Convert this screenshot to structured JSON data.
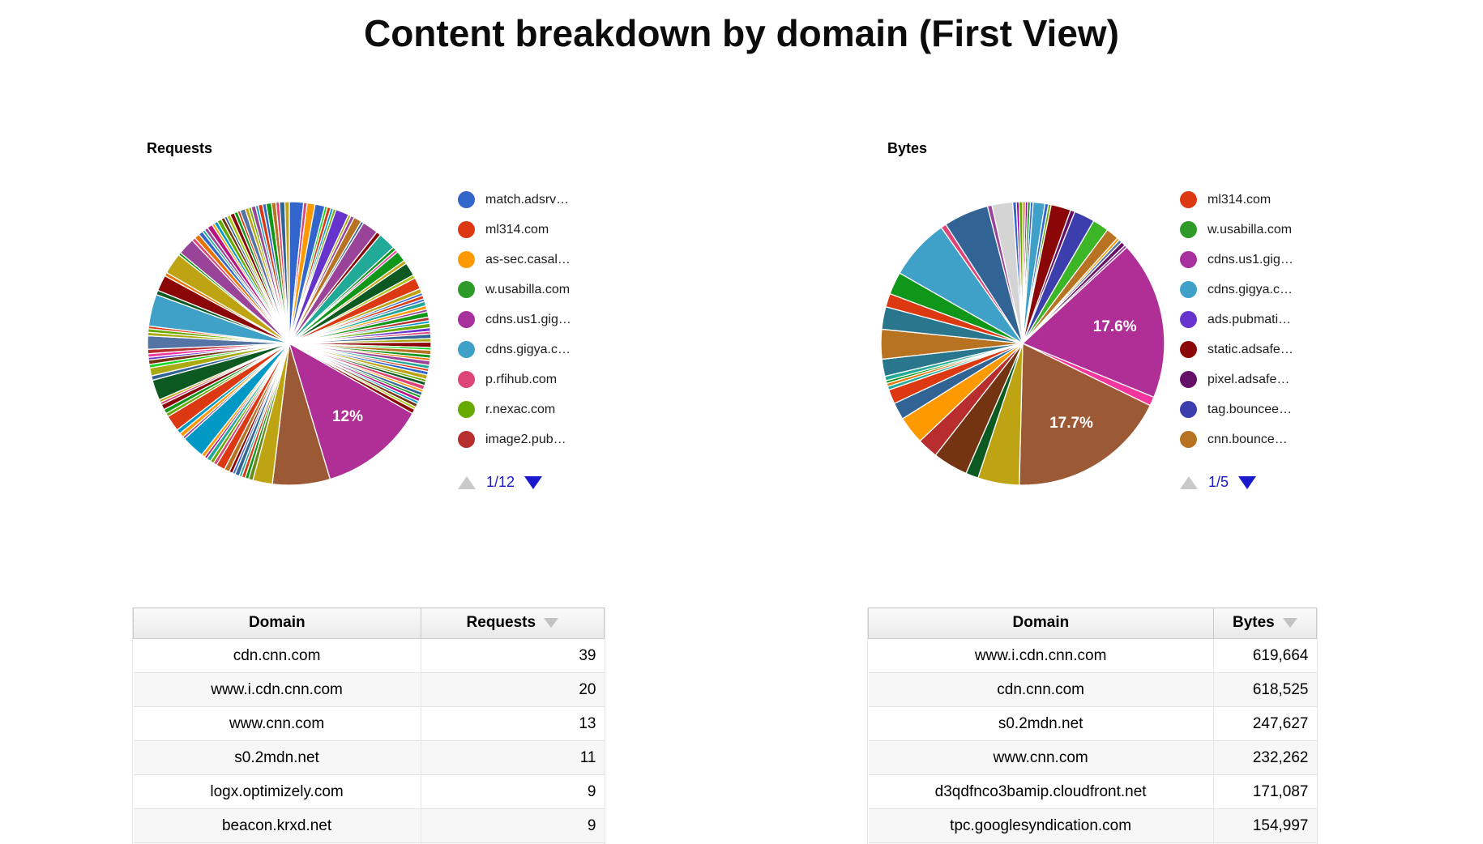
{
  "title": "Content breakdown by domain (First View)",
  "requests_chart": {
    "label": "Requests",
    "pager": "1/12",
    "legend": [
      {
        "label": "match.adsrv…",
        "color": "#3366cc"
      },
      {
        "label": "ml314.com",
        "color": "#dc3912"
      },
      {
        "label": "as-sec.casal…",
        "color": "#ff9900"
      },
      {
        "label": "w.usabilla.com",
        "color": "#2e9a27"
      },
      {
        "label": "cdns.us1.gig…",
        "color": "#a8309c"
      },
      {
        "label": "cdns.gigya.c…",
        "color": "#3fa0c8"
      },
      {
        "label": "p.rfihub.com",
        "color": "#dd4477"
      },
      {
        "label": "r.nexac.com",
        "color": "#66aa00"
      },
      {
        "label": "image2.pub…",
        "color": "#b82e2e"
      }
    ],
    "slices": [
      [
        1.6,
        "#3366cc"
      ],
      [
        0.4,
        "#dd4477"
      ],
      [
        0.9,
        "#ff9900"
      ],
      [
        1.1,
        "#3366cc"
      ],
      [
        0.3,
        "#16d620"
      ],
      [
        0.4,
        "#dc3912"
      ],
      [
        0.3,
        "#0099c6"
      ],
      [
        0.3,
        "#66aa00"
      ],
      [
        1.5,
        "#6633cc"
      ],
      [
        0.3,
        "#aaaa11"
      ],
      [
        0.4,
        "#994499"
      ],
      [
        0.9,
        "#b77322"
      ],
      [
        0.3,
        "#316395"
      ],
      [
        1.8,
        "#994499"
      ],
      [
        0.5,
        "#8b0707"
      ],
      [
        2.0,
        "#22aa99"
      ],
      [
        0.4,
        "#109618"
      ],
      [
        0.3,
        "#f4359e"
      ],
      [
        1.2,
        "#109618"
      ],
      [
        0.4,
        "#bea413"
      ],
      [
        1.5,
        "#0c5922"
      ],
      [
        0.4,
        "#a9c413"
      ],
      [
        1.3,
        "#dc3912"
      ],
      [
        0.5,
        "#bea413"
      ],
      [
        0.3,
        "#3366cc"
      ],
      [
        0.4,
        "#dc3912"
      ],
      [
        0.3,
        "#3366cc"
      ],
      [
        0.5,
        "#22aa99"
      ],
      [
        0.4,
        "#ff9900"
      ],
      [
        0.3,
        "#994499"
      ],
      [
        0.6,
        "#109618"
      ],
      [
        0.4,
        "#b82e2e"
      ],
      [
        0.3,
        "#0099c6"
      ],
      [
        0.5,
        "#66aa00"
      ],
      [
        0.4,
        "#6633cc"
      ],
      [
        0.3,
        "#dd4477"
      ],
      [
        0.5,
        "#316395"
      ],
      [
        0.4,
        "#aaaa11"
      ],
      [
        0.6,
        "#8b0707"
      ],
      [
        0.3,
        "#16d620"
      ],
      [
        0.5,
        "#b77322"
      ],
      [
        0.4,
        "#109618"
      ],
      [
        0.3,
        "#e67300"
      ],
      [
        0.5,
        "#994499"
      ],
      [
        0.4,
        "#22aa99"
      ],
      [
        0.3,
        "#dc3912"
      ],
      [
        0.4,
        "#3366cc"
      ],
      [
        0.5,
        "#bea413"
      ],
      [
        0.3,
        "#66aa00"
      ],
      [
        0.4,
        "#0c5922"
      ],
      [
        0.5,
        "#dd4477"
      ],
      [
        0.3,
        "#ff9900"
      ],
      [
        0.4,
        "#316395"
      ],
      [
        0.3,
        "#109618"
      ],
      [
        0.4,
        "#b91383"
      ],
      [
        0.3,
        "#0099c6"
      ],
      [
        0.4,
        "#743411"
      ],
      [
        0.3,
        "#a9c413"
      ],
      [
        0.5,
        "#8b0707"
      ],
      [
        12,
        "#b02f96",
        "12%"
      ],
      [
        6.5,
        "#9c5935"
      ],
      [
        2.2,
        "#bea413"
      ],
      [
        0.5,
        "#668d1c"
      ],
      [
        0.4,
        "#109618"
      ],
      [
        0.4,
        "#dc3912"
      ],
      [
        0.3,
        "#22aa99"
      ],
      [
        0.5,
        "#316395"
      ],
      [
        0.3,
        "#3366cc"
      ],
      [
        0.4,
        "#8b0707"
      ],
      [
        0.6,
        "#b77322"
      ],
      [
        1.0,
        "#dc3912"
      ],
      [
        0.4,
        "#dd4477"
      ],
      [
        0.4,
        "#66aa00"
      ],
      [
        0.5,
        "#22aa99"
      ],
      [
        0.3,
        "#b91383"
      ],
      [
        0.4,
        "#ff9900"
      ],
      [
        2.6,
        "#0099c6"
      ],
      [
        0.3,
        "#994499"
      ],
      [
        0.5,
        "#ff9900"
      ],
      [
        0.5,
        "#0099c6"
      ],
      [
        1.8,
        "#dc3912"
      ],
      [
        0.4,
        "#66aa00"
      ],
      [
        0.5,
        "#109618"
      ],
      [
        0.6,
        "#8b0707"
      ],
      [
        0.3,
        "#dd4477"
      ],
      [
        0.3,
        "#bea413"
      ],
      [
        2.3,
        "#0c5922"
      ],
      [
        0.5,
        "#316395"
      ],
      [
        0.9,
        "#aaaa11"
      ],
      [
        0.4,
        "#16d620"
      ],
      [
        0.5,
        "#743411"
      ],
      [
        0.3,
        "#6633cc"
      ],
      [
        0.4,
        "#f4359e"
      ],
      [
        0.5,
        "#b82e2e"
      ],
      [
        1.5,
        "#5574a6"
      ],
      [
        0.4,
        "#aaaa11"
      ],
      [
        0.4,
        "#66aa00"
      ],
      [
        0.3,
        "#dc3912"
      ],
      [
        3.6,
        "#3fa0c8"
      ],
      [
        0.5,
        "#0c5922"
      ],
      [
        1.8,
        "#8b0707"
      ],
      [
        0.4,
        "#e67300"
      ],
      [
        2.4,
        "#bea413"
      ],
      [
        0.3,
        "#109618"
      ],
      [
        1.9,
        "#994499"
      ],
      [
        0.4,
        "#dd4477"
      ],
      [
        0.6,
        "#e67300"
      ],
      [
        0.5,
        "#3366cc"
      ],
      [
        0.3,
        "#22aa99"
      ],
      [
        0.4,
        "#994499"
      ],
      [
        0.6,
        "#b91383"
      ],
      [
        0.3,
        "#ff9900"
      ],
      [
        0.4,
        "#0099c6"
      ],
      [
        0.5,
        "#66aa00"
      ],
      [
        0.4,
        "#743411"
      ],
      [
        0.3,
        "#316395"
      ],
      [
        0.4,
        "#a9c413"
      ],
      [
        0.5,
        "#8b0707"
      ],
      [
        0.4,
        "#109618"
      ],
      [
        0.3,
        "#dc3912"
      ],
      [
        0.6,
        "#5574a6"
      ],
      [
        0.4,
        "#bea413"
      ],
      [
        0.3,
        "#66aa00"
      ],
      [
        0.5,
        "#994499"
      ],
      [
        0.3,
        "#0099c6"
      ],
      [
        0.5,
        "#dc3912"
      ],
      [
        0.4,
        "#3366cc"
      ],
      [
        0.6,
        "#109618"
      ],
      [
        0.5,
        "#b77322"
      ],
      [
        0.4,
        "#dd4477"
      ],
      [
        0.6,
        "#316395"
      ],
      [
        0.5,
        "#bea413"
      ]
    ]
  },
  "bytes_chart": {
    "label": "Bytes",
    "pager": "1/5",
    "legend": [
      {
        "label": "ml314.com",
        "color": "#dc3912"
      },
      {
        "label": "w.usabilla.com",
        "color": "#2e9a27"
      },
      {
        "label": "cdns.us1.gig…",
        "color": "#a8309c"
      },
      {
        "label": "cdns.gigya.c…",
        "color": "#3fa0c8"
      },
      {
        "label": "ads.pubmati…",
        "color": "#6633cc"
      },
      {
        "label": "static.adsafe…",
        "color": "#8b0707"
      },
      {
        "label": "pixel.adsafe…",
        "color": "#651067"
      },
      {
        "label": "tag.bouncee…",
        "color": "#3b3eac"
      },
      {
        "label": "cnn.bounce…",
        "color": "#b77322"
      }
    ],
    "slices": [
      [
        0.3,
        "#e67300"
      ],
      [
        0.25,
        "#990099"
      ],
      [
        0.3,
        "#109618"
      ],
      [
        0.3,
        "#3366cc"
      ],
      [
        1.3,
        "#3fa0c8"
      ],
      [
        0.4,
        "#3366cc"
      ],
      [
        0.3,
        "#66aa00"
      ],
      [
        2.2,
        "#8b0707"
      ],
      [
        0.5,
        "#651067"
      ],
      [
        2.3,
        "#3b3eac"
      ],
      [
        1.8,
        "#3cb527"
      ],
      [
        1.4,
        "#b77322"
      ],
      [
        0.3,
        "#ff9900"
      ],
      [
        0.35,
        "#5574a6"
      ],
      [
        0.5,
        "#651067"
      ],
      [
        0.3,
        "#994499"
      ],
      [
        17.6,
        "#b02f96",
        "17.6%"
      ],
      [
        1.0,
        "#f4359e"
      ],
      [
        17.7,
        "#9c5935",
        "17.7%"
      ],
      [
        4.6,
        "#bea413"
      ],
      [
        1.4,
        "#0c5922"
      ],
      [
        3.9,
        "#743411"
      ],
      [
        2.3,
        "#b82e2e"
      ],
      [
        3.1,
        "#ff9900"
      ],
      [
        1.9,
        "#316395"
      ],
      [
        1.6,
        "#dc3912"
      ],
      [
        0.4,
        "#22aa99"
      ],
      [
        0.35,
        "#e67300"
      ],
      [
        0.3,
        "#109618"
      ],
      [
        0.5,
        "#22aa99"
      ],
      [
        1.9,
        "#2a778d"
      ],
      [
        3.3,
        "#b77322"
      ],
      [
        2.5,
        "#2a778d"
      ],
      [
        1.5,
        "#dc3912"
      ],
      [
        2.5,
        "#109618"
      ],
      [
        6.8,
        "#3fa0c8"
      ],
      [
        0.6,
        "#dd4477"
      ],
      [
        5.0,
        "#316395"
      ],
      [
        0.5,
        "#994499"
      ],
      [
        2.3,
        "#d4d4d4"
      ],
      [
        0.4,
        "#3366cc"
      ],
      [
        0.3,
        "#990099"
      ],
      [
        0.4,
        "#66aa00"
      ]
    ]
  },
  "requests_table": {
    "headers": [
      "Domain",
      "Requests"
    ],
    "sorted_col": 1,
    "rows": [
      [
        "cdn.cnn.com",
        "39"
      ],
      [
        "www.i.cdn.cnn.com",
        "20"
      ],
      [
        "www.cnn.com",
        "13"
      ],
      [
        "s0.2mdn.net",
        "11"
      ],
      [
        "logx.optimizely.com",
        "9"
      ],
      [
        "beacon.krxd.net",
        "9"
      ]
    ]
  },
  "bytes_table": {
    "headers": [
      "Domain",
      "Bytes"
    ],
    "sorted_col": 1,
    "rows": [
      [
        "www.i.cdn.cnn.com",
        "619,664"
      ],
      [
        "cdn.cnn.com",
        "618,525"
      ],
      [
        "s0.2mdn.net",
        "247,627"
      ],
      [
        "www.cnn.com",
        "232,262"
      ],
      [
        "d3qdfnco3bamip.cloudfront.net",
        "171,087"
      ],
      [
        "tpc.googlesyndication.com",
        "154,997"
      ]
    ]
  },
  "chart_data": [
    {
      "type": "pie",
      "title": "Requests",
      "legend_position": "right",
      "legend_entries": [
        "match.adsrv…",
        "ml314.com",
        "as-sec.casal…",
        "w.usabilla.com",
        "cdns.us1.gig…",
        "cdns.gigya.c…",
        "p.rfihub.com",
        "r.nexac.com",
        "image2.pub…"
      ],
      "labeled_slices": [
        {
          "label": "12%",
          "value_pct": 12
        }
      ],
      "pager": "1/12"
    },
    {
      "type": "pie",
      "title": "Bytes",
      "legend_position": "right",
      "legend_entries": [
        "ml314.com",
        "w.usabilla.com",
        "cdns.us1.gig…",
        "cdns.gigya.c…",
        "ads.pubmati…",
        "static.adsafe…",
        "pixel.adsafe…",
        "tag.bouncee…",
        "cnn.bounce…"
      ],
      "labeled_slices": [
        {
          "label": "17.6%",
          "value_pct": 17.6
        },
        {
          "label": "17.7%",
          "value_pct": 17.7
        }
      ],
      "pager": "1/5"
    },
    {
      "type": "table",
      "columns": [
        "Domain",
        "Requests"
      ],
      "rows": [
        [
          "cdn.cnn.com",
          39
        ],
        [
          "www.i.cdn.cnn.com",
          20
        ],
        [
          "www.cnn.com",
          13
        ],
        [
          "s0.2mdn.net",
          11
        ],
        [
          "logx.optimizely.com",
          9
        ],
        [
          "beacon.krxd.net",
          9
        ]
      ]
    },
    {
      "type": "table",
      "columns": [
        "Domain",
        "Bytes"
      ],
      "rows": [
        [
          "www.i.cdn.cnn.com",
          "619,664"
        ],
        [
          "cdn.cnn.com",
          "618,525"
        ],
        [
          "s0.2mdn.net",
          "247,627"
        ],
        [
          "www.cnn.com",
          "232,262"
        ],
        [
          "d3qdfnco3bamip.cloudfront.net",
          "171,087"
        ],
        [
          "tpc.googlesyndication.com",
          "154,997"
        ]
      ]
    }
  ]
}
